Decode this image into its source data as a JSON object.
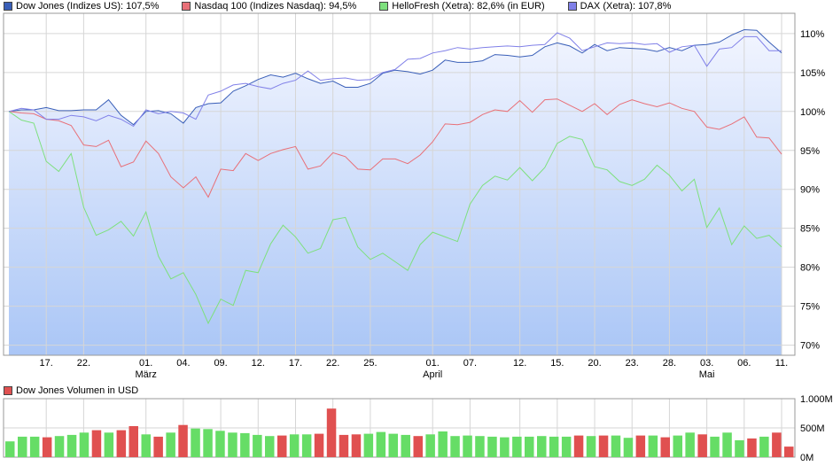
{
  "legend": [
    {
      "label": "Dow Jones (Indizes US): 107,5%",
      "color": "#3a5fb8"
    },
    {
      "label": "Nasdaq 100 (Indizes Nasdaq): 94,5%",
      "color": "#e87078"
    },
    {
      "label": "HelloFresh (Xetra): 82,6% (in EUR)",
      "color": "#7ee07e"
    },
    {
      "label": "DAX (Xetra): 107,8%",
      "color": "#8080e8"
    }
  ],
  "volume_legend": {
    "label": "Dow Jones Volumen in USD",
    "color": "#e05050"
  },
  "chart_data": [
    {
      "type": "line",
      "y_ticks": [
        "110%",
        "105%",
        "100%",
        "95%",
        "90%",
        "85%",
        "80%",
        "75%",
        "70%"
      ],
      "ylim": [
        68.7,
        112.6
      ],
      "x_ticks": [
        "17.",
        "22.",
        "01.",
        "04.",
        "09.",
        "12.",
        "17.",
        "22.",
        "25.",
        "01.",
        "07.",
        "12.",
        "15.",
        "20.",
        "23.",
        "28.",
        "03.",
        "06.",
        "11."
      ],
      "x_tick_index": [
        3,
        6,
        11,
        14,
        17,
        20,
        23,
        26,
        29,
        34,
        37,
        41,
        44,
        47,
        50,
        53,
        56,
        59,
        62
      ],
      "month_labels": [
        "März",
        "April",
        "Mai"
      ],
      "month_index": [
        11,
        34,
        56
      ],
      "grid": true,
      "series": [
        {
          "name": "Dow Jones (Indizes US)",
          "color": "#3a5fb8",
          "fill": true,
          "values": [
            100.0,
            100.2,
            100.2,
            100.5,
            100.1,
            100.1,
            100.2,
            100.2,
            101.5,
            99.5,
            98.3,
            100.0,
            100.1,
            99.7,
            98.5,
            100.5,
            101.0,
            101.1,
            102.6,
            103.3,
            104.1,
            104.7,
            104.4,
            104.9,
            104.2,
            103.6,
            103.9,
            103.1,
            103.1,
            103.6,
            104.9,
            105.3,
            105.1,
            104.8,
            105.3,
            106.6,
            106.3,
            106.3,
            106.5,
            107.3,
            107.2,
            107.0,
            107.2,
            108.3,
            108.8,
            108.4,
            107.5,
            108.6,
            107.8,
            108.2,
            108.1,
            108.0,
            107.7,
            108.2,
            107.8,
            108.5,
            108.6,
            108.9,
            109.8,
            110.5,
            110.4,
            108.9,
            107.5
          ]
        },
        {
          "name": "Nasdaq 100 (Indizes Nasdaq)",
          "color": "#e87078",
          "values": [
            100.0,
            99.8,
            99.7,
            99.0,
            98.8,
            98.2,
            95.7,
            95.5,
            96.3,
            92.9,
            93.5,
            96.2,
            94.6,
            91.6,
            90.2,
            91.6,
            89.0,
            92.6,
            92.4,
            94.6,
            93.7,
            94.6,
            95.1,
            95.5,
            92.6,
            93.0,
            94.7,
            94.2,
            92.6,
            92.5,
            93.9,
            93.9,
            93.3,
            94.4,
            96.1,
            98.4,
            98.3,
            98.6,
            99.6,
            100.2,
            100.0,
            101.4,
            99.9,
            101.5,
            101.6,
            100.8,
            100.0,
            101.0,
            99.6,
            100.9,
            101.5,
            101.0,
            100.6,
            101.1,
            100.4,
            100.0,
            98.0,
            97.7,
            98.4,
            99.3,
            96.7,
            96.6,
            94.5
          ]
        },
        {
          "name": "HelloFresh (Xetra)",
          "color": "#7ee07e",
          "values": [
            100.0,
            98.9,
            98.5,
            93.6,
            92.3,
            94.6,
            87.7,
            84.1,
            84.8,
            85.9,
            84.0,
            87.1,
            81.4,
            78.5,
            79.3,
            76.5,
            72.8,
            75.9,
            75.1,
            79.6,
            79.3,
            83.0,
            85.4,
            83.9,
            81.8,
            82.4,
            86.1,
            86.4,
            82.6,
            81.0,
            81.8,
            80.7,
            79.6,
            82.9,
            84.5,
            83.9,
            83.3,
            88.1,
            90.5,
            91.7,
            91.2,
            92.8,
            91.1,
            92.8,
            95.9,
            96.8,
            96.4,
            92.9,
            92.5,
            91.0,
            90.5,
            91.3,
            93.1,
            91.8,
            89.8,
            91.3,
            85.1,
            87.6,
            82.9,
            85.3,
            83.7,
            84.1,
            82.6
          ]
        },
        {
          "name": "DAX (Xetra)",
          "color": "#8080e8",
          "values": [
            100.0,
            100.4,
            100.2,
            99.0,
            99.0,
            99.5,
            99.3,
            98.8,
            99.5,
            99.0,
            98.1,
            100.2,
            99.7,
            100.0,
            99.8,
            99.0,
            102.1,
            102.6,
            103.4,
            103.6,
            103.2,
            102.9,
            103.6,
            104.0,
            105.2,
            104.0,
            104.2,
            104.3,
            104.0,
            104.1,
            105.0,
            105.4,
            106.7,
            106.8,
            107.5,
            107.8,
            108.2,
            108.0,
            108.2,
            108.3,
            108.4,
            108.3,
            108.5,
            108.6,
            110.1,
            109.4,
            107.8,
            108.3,
            108.8,
            108.7,
            108.8,
            108.6,
            108.7,
            107.6,
            108.3,
            108.5,
            105.8,
            108.0,
            108.2,
            109.6,
            109.6,
            107.8,
            107.8
          ]
        }
      ]
    },
    {
      "type": "bar",
      "title": "Dow Jones Volumen in USD",
      "y_ticks": [
        "1.000M",
        "500M",
        "0M"
      ],
      "ylim": [
        0,
        1000
      ],
      "values": [
        270,
        350,
        350,
        340,
        360,
        380,
        420,
        460,
        420,
        460,
        530,
        390,
        350,
        420,
        550,
        490,
        480,
        450,
        420,
        410,
        380,
        360,
        370,
        390,
        390,
        400,
        830,
        380,
        390,
        400,
        430,
        400,
        380,
        360,
        390,
        440,
        360,
        370,
        360,
        350,
        340,
        350,
        350,
        360,
        350,
        350,
        370,
        360,
        370,
        370,
        330,
        370,
        370,
        340,
        370,
        420,
        390,
        350,
        420,
        290,
        320,
        350,
        420,
        180
      ],
      "colors": [
        "g",
        "g",
        "g",
        "r",
        "g",
        "g",
        "g",
        "r",
        "g",
        "r",
        "r",
        "g",
        "r",
        "g",
        "r",
        "g",
        "g",
        "g",
        "g",
        "g",
        "g",
        "g",
        "r",
        "g",
        "g",
        "r",
        "r",
        "r",
        "r",
        "g",
        "g",
        "g",
        "g",
        "r",
        "g",
        "g",
        "g",
        "g",
        "g",
        "g",
        "g",
        "g",
        "g",
        "g",
        "g",
        "g",
        "r",
        "g",
        "r",
        "g",
        "g",
        "r",
        "g",
        "r",
        "g",
        "g",
        "r",
        "g",
        "g",
        "g",
        "r",
        "g",
        "r",
        "r"
      ]
    }
  ]
}
